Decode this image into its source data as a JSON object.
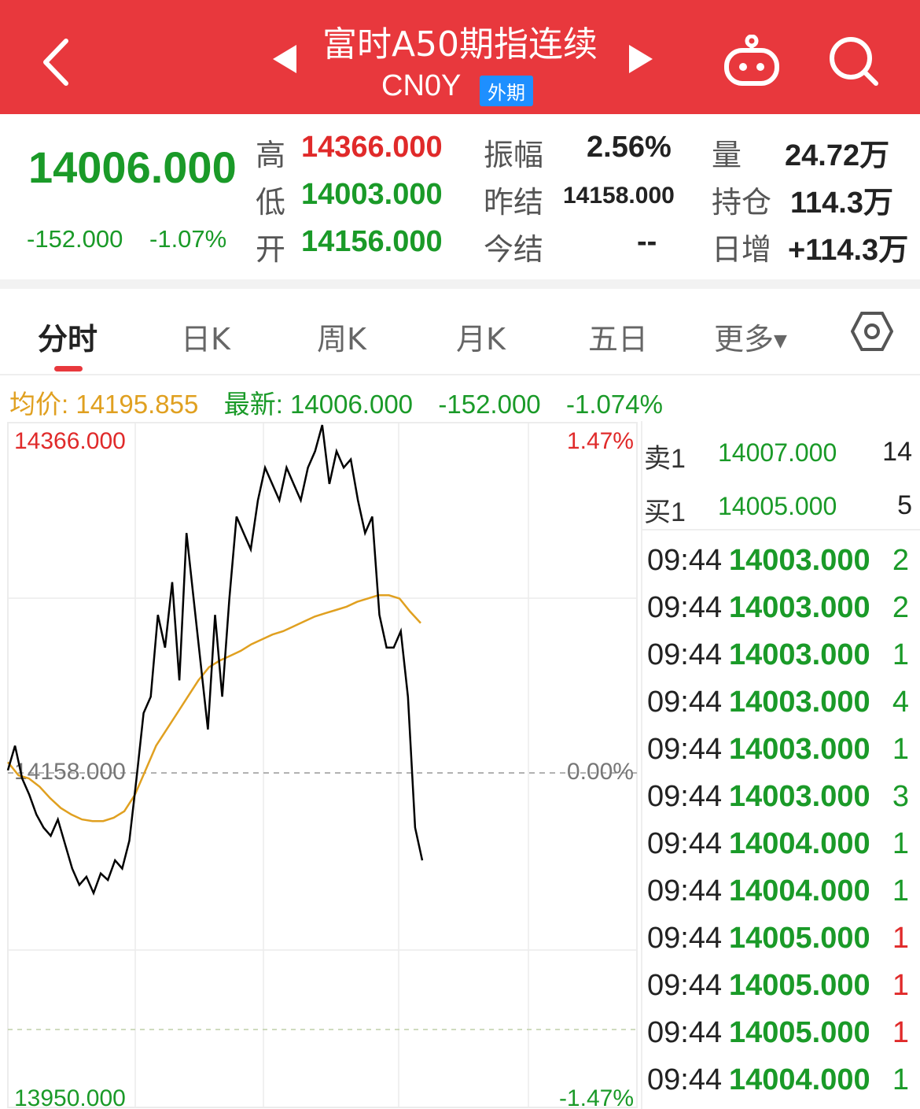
{
  "header": {
    "title": "富时A50期指连续",
    "code": "CN0Y",
    "badge": "外期"
  },
  "quote": {
    "price": "14006.000",
    "change": "-152.000",
    "change_pct": "-1.07%",
    "high_label": "高",
    "high": "14366.000",
    "low_label": "低",
    "low": "14003.000",
    "open_label": "开",
    "open": "14156.000",
    "amp_label": "振幅",
    "amp": "2.56%",
    "prev_label": "昨结",
    "prev": "14158.000",
    "settle_label": "今结",
    "settle": "--",
    "vol_label": "量",
    "vol": "24.72万",
    "oi_label": "持仓",
    "oi": "114.3万",
    "oi_chg_label": "日增",
    "oi_chg": "+114.3万"
  },
  "tabs": [
    "分时",
    "日K",
    "周K",
    "月K",
    "五日",
    "更多"
  ],
  "info": {
    "avg_label": "均价:",
    "avg": "14195.855",
    "latest_label": "最新:",
    "latest": "14006.000",
    "chg": "-152.000",
    "pct": "-1.074%"
  },
  "chart_data": {
    "type": "line",
    "series": [
      {
        "name": "最新",
        "color": "#000000",
        "values": [
          14155,
          14170,
          14150,
          14140,
          14128,
          14120,
          14115,
          14125,
          14110,
          14095,
          14085,
          14090,
          14080,
          14092,
          14088,
          14100,
          14095,
          14112,
          14150,
          14190,
          14200,
          14250,
          14230,
          14270,
          14210,
          14300,
          14260,
          14220,
          14180,
          14250,
          14200,
          14260,
          14310,
          14300,
          14290,
          14320,
          14340,
          14330,
          14320,
          14340,
          14330,
          14320,
          14340,
          14350,
          14366,
          14330,
          14350,
          14340,
          14345,
          14320,
          14300,
          14310,
          14250,
          14230,
          14230,
          14240,
          14200,
          14120,
          14100
        ]
      },
      {
        "name": "均价",
        "color": "#e0a020",
        "values": [
          14160,
          14152,
          14150,
          14145,
          14138,
          14132,
          14128,
          14125,
          14124,
          14124,
          14126,
          14130,
          14140,
          14155,
          14170,
          14180,
          14190,
          14200,
          14210,
          14218,
          14222,
          14225,
          14228,
          14232,
          14235,
          14238,
          14240,
          14243,
          14246,
          14249,
          14251,
          14253,
          14255,
          14258,
          14260,
          14262,
          14262,
          14260,
          14252,
          14245
        ]
      }
    ],
    "y_left_ticks": [
      "14366.000",
      "14158.000",
      "13950.000"
    ],
    "y_right_ticks": [
      "1.47%",
      "0.00%",
      "-1.47%"
    ],
    "ylim": [
      13950,
      14366
    ],
    "grid": true
  },
  "order_book": [
    {
      "label": "卖1",
      "price": "14007.000",
      "vol": "14"
    },
    {
      "label": "买1",
      "price": "14005.000",
      "vol": "5"
    }
  ],
  "ticks": [
    {
      "time": "09:44",
      "price": "14003.000",
      "vol": "2",
      "color": "#1a9a28"
    },
    {
      "time": "09:44",
      "price": "14003.000",
      "vol": "2",
      "color": "#1a9a28"
    },
    {
      "time": "09:44",
      "price": "14003.000",
      "vol": "1",
      "color": "#1a9a28"
    },
    {
      "time": "09:44",
      "price": "14003.000",
      "vol": "4",
      "color": "#1a9a28"
    },
    {
      "time": "09:44",
      "price": "14003.000",
      "vol": "1",
      "color": "#1a9a28"
    },
    {
      "time": "09:44",
      "price": "14003.000",
      "vol": "3",
      "color": "#1a9a28"
    },
    {
      "time": "09:44",
      "price": "14004.000",
      "vol": "1",
      "color": "#1a9a28"
    },
    {
      "time": "09:44",
      "price": "14004.000",
      "vol": "1",
      "color": "#1a9a28"
    },
    {
      "time": "09:44",
      "price": "14005.000",
      "vol": "1",
      "color": "#e02a2a"
    },
    {
      "time": "09:44",
      "price": "14005.000",
      "vol": "1",
      "color": "#e02a2a"
    },
    {
      "time": "09:44",
      "price": "14005.000",
      "vol": "1",
      "color": "#e02a2a"
    },
    {
      "time": "09:44",
      "price": "14004.000",
      "vol": "1",
      "color": "#1a9a28"
    }
  ]
}
